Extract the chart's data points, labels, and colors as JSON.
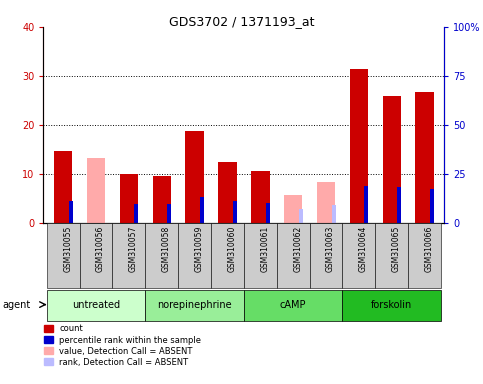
{
  "title": "GDS3702 / 1371193_at",
  "samples": [
    "GSM310055",
    "GSM310056",
    "GSM310057",
    "GSM310058",
    "GSM310059",
    "GSM310060",
    "GSM310061",
    "GSM310062",
    "GSM310063",
    "GSM310064",
    "GSM310065",
    "GSM310066"
  ],
  "groups": [
    {
      "label": "untreated",
      "bg": "#ccffcc",
      "indices": [
        0,
        1,
        2
      ]
    },
    {
      "label": "norepinephrine",
      "bg": "#99ee99",
      "indices": [
        3,
        4,
        5
      ]
    },
    {
      "label": "cAMP",
      "bg": "#66dd66",
      "indices": [
        6,
        7,
        8
      ]
    },
    {
      "label": "forskolin",
      "bg": "#22bb22",
      "indices": [
        9,
        10,
        11
      ]
    }
  ],
  "count": [
    14.7,
    null,
    10.0,
    9.5,
    18.8,
    12.5,
    10.5,
    null,
    null,
    31.3,
    25.8,
    26.7
  ],
  "percentile": [
    11.0,
    null,
    9.5,
    9.5,
    13.0,
    11.0,
    10.2,
    null,
    null,
    19.0,
    18.0,
    17.0
  ],
  "absent_value": [
    null,
    13.3,
    null,
    null,
    null,
    null,
    null,
    5.7,
    8.3,
    null,
    null,
    null
  ],
  "absent_rank": [
    null,
    null,
    null,
    null,
    null,
    null,
    null,
    6.9,
    9.0,
    null,
    null,
    null
  ],
  "ylim_left": [
    0,
    40
  ],
  "ylim_right": [
    0,
    100
  ],
  "yticks_left": [
    0,
    10,
    20,
    30,
    40
  ],
  "yticks_right": [
    0,
    25,
    50,
    75,
    100
  ],
  "ytick_labels_right": [
    "0",
    "25",
    "50",
    "75",
    "100%"
  ],
  "count_color": "#cc0000",
  "percentile_color": "#0000cc",
  "absent_value_color": "#ffaaaa",
  "absent_rank_color": "#bbbbff",
  "left_axis_color": "#cc0000",
  "right_axis_color": "#0000cc",
  "bg_color": "#ffffff",
  "xtick_bg": "#cccccc",
  "bar_width": 0.35,
  "blue_bar_width": 0.12
}
